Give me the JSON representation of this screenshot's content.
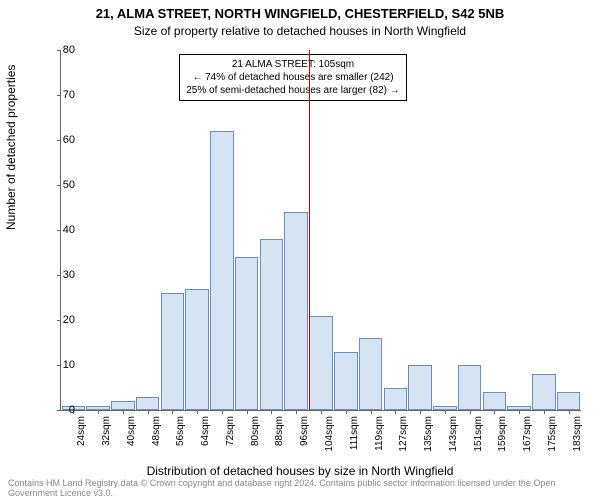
{
  "title": "21, ALMA STREET, NORTH WINGFIELD, CHESTERFIELD, S42 5NB",
  "subtitle": "Size of property relative to detached houses in North Wingfield",
  "ylabel": "Number of detached properties",
  "xlabel": "Distribution of detached houses by size in North Wingfield",
  "footer": "Contains HM Land Registry data © Crown copyright and database right 2024. Contains public sector information licensed under the Open Government Licence v3.0.",
  "chart": {
    "type": "bar",
    "ylim": [
      0,
      80
    ],
    "ytick_step": 10,
    "categories": [
      "24sqm",
      "32sqm",
      "40sqm",
      "48sqm",
      "56sqm",
      "64sqm",
      "72sqm",
      "80sqm",
      "88sqm",
      "96sqm",
      "104sqm",
      "111sqm",
      "119sqm",
      "127sqm",
      "135sqm",
      "143sqm",
      "151sqm",
      "159sqm",
      "167sqm",
      "175sqm",
      "183sqm"
    ],
    "values": [
      1,
      1,
      2,
      3,
      26,
      27,
      62,
      34,
      38,
      44,
      21,
      13,
      16,
      5,
      10,
      1,
      10,
      4,
      1,
      8,
      4
    ],
    "bar_color": "#d6e3f3",
    "bar_border": "#6a8fc1",
    "ref_line_x_category": "104sqm",
    "ref_line_color": "#cc0000",
    "annotation": {
      "line1": "21 ALMA STREET: 105sqm",
      "line2": "← 74% of detached houses are smaller (242)",
      "line3": "25% of semi-detached houses are larger (82) →"
    },
    "plot_bg": "#ffffff",
    "axis_color": "#666666",
    "font_family": "Arial"
  }
}
